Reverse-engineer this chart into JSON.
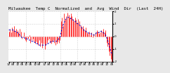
{
  "title": "Milwaukee  Temp C  Normalized  and  Avg  Wind  Dir  (Last  24H)",
  "bg_color": "#e8e8e8",
  "plot_bg": "#ffffff",
  "grid_color": "#aaaaaa",
  "bar_color": "#ff0000",
  "line_color": "#0000cc",
  "num_points": 96,
  "seed": 99,
  "ylim": [
    -2.0,
    2.0
  ],
  "yticks": [
    -2,
    -1,
    0,
    1,
    2
  ],
  "title_fontsize": 4.2,
  "tick_fontsize": 3.0,
  "bar_values": [
    0.4,
    0.6,
    0.3,
    0.7,
    0.5,
    0.8,
    0.4,
    0.6,
    0.5,
    0.3,
    0.6,
    0.4,
    -0.2,
    -0.1,
    0.3,
    -0.3,
    -0.4,
    -0.1,
    -0.2,
    0.1,
    -0.5,
    -0.3,
    -0.2,
    -0.4,
    -0.6,
    -0.4,
    -0.5,
    -0.7,
    -0.3,
    -0.8,
    -0.5,
    -0.9,
    -0.6,
    -1.0,
    -0.7,
    -0.5,
    -0.3,
    -0.2,
    -0.5,
    -0.6,
    -0.4,
    -0.3,
    -0.5,
    -0.7,
    -0.6,
    -0.4,
    -0.5,
    -0.3,
    1.2,
    1.5,
    0.8,
    1.8,
    1.4,
    1.6,
    1.9,
    1.7,
    1.5,
    1.8,
    1.6,
    1.4,
    1.2,
    1.5,
    1.3,
    1.1,
    1.4,
    1.2,
    0.9,
    0.7,
    0.8,
    0.6,
    0.5,
    0.7,
    0.3,
    0.2,
    0.4,
    0.1,
    0.3,
    -0.1,
    0.2,
    0.0,
    0.3,
    0.5,
    0.4,
    0.2,
    0.3,
    0.5,
    0.4,
    0.6,
    0.3,
    0.5,
    -0.5,
    -0.8,
    -1.2,
    -1.5,
    -1.8,
    -2.0
  ],
  "blue_values": [
    0.5,
    0.5,
    0.5,
    0.5,
    0.5,
    0.4,
    0.4,
    0.3,
    0.3,
    0.2,
    0.1,
    0.0,
    -0.1,
    -0.1,
    -0.1,
    -0.2,
    -0.2,
    -0.2,
    -0.3,
    -0.3,
    -0.3,
    -0.4,
    -0.4,
    -0.4,
    -0.5,
    -0.5,
    -0.6,
    -0.6,
    -0.7,
    -0.7,
    -0.7,
    -0.7,
    -0.7,
    -0.7,
    -0.7,
    -0.6,
    -0.6,
    -0.5,
    -0.5,
    -0.4,
    -0.4,
    -0.4,
    -0.4,
    -0.4,
    -0.4,
    -0.3,
    -0.2,
    -0.1,
    0.3,
    0.6,
    0.9,
    1.1,
    1.3,
    1.4,
    1.5,
    1.5,
    1.5,
    1.4,
    1.4,
    1.3,
    1.2,
    1.2,
    1.1,
    1.0,
    1.0,
    0.9,
    0.8,
    0.7,
    0.6,
    0.5,
    0.4,
    0.4,
    0.3,
    0.3,
    0.2,
    0.2,
    0.2,
    0.1,
    0.1,
    0.1,
    0.2,
    0.3,
    0.3,
    0.3,
    0.4,
    0.4,
    0.3,
    0.3,
    0.2,
    0.1,
    -0.1,
    -0.3,
    -0.6,
    -0.9,
    -1.2,
    -1.5
  ],
  "n_vgrid": 5,
  "n_hgrid": 5
}
